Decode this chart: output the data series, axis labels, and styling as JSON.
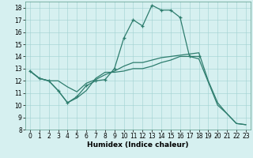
{
  "xlabel": "Humidex (Indice chaleur)",
  "bg_color": "#d6f0f0",
  "line_color": "#2e7d6e",
  "xlim": [
    -0.5,
    23.5
  ],
  "ylim": [
    8,
    18.5
  ],
  "yticks": [
    8,
    9,
    10,
    11,
    12,
    13,
    14,
    15,
    16,
    17,
    18
  ],
  "xticks": [
    0,
    1,
    2,
    3,
    4,
    5,
    6,
    7,
    8,
    9,
    10,
    11,
    12,
    13,
    14,
    15,
    16,
    17,
    18,
    19,
    20,
    21,
    22,
    23
  ],
  "line1_x": [
    0,
    1,
    2,
    3,
    4,
    5,
    6,
    7,
    8,
    9,
    10,
    11,
    12,
    13,
    14,
    15,
    16,
    17,
    18
  ],
  "line1_y": [
    12.8,
    12.2,
    12.0,
    11.2,
    10.2,
    10.7,
    11.6,
    12.0,
    12.1,
    13.0,
    15.5,
    17.0,
    16.5,
    18.2,
    17.8,
    17.8,
    17.2,
    14.0,
    14.0
  ],
  "line2_x": [
    0,
    1,
    2,
    3,
    4,
    5,
    6,
    7,
    8,
    9,
    10,
    11,
    12,
    13,
    14,
    15,
    16,
    17,
    18,
    19,
    20,
    21,
    22,
    23
  ],
  "line2_y": [
    12.8,
    12.2,
    12.0,
    12.0,
    11.5,
    11.1,
    11.8,
    12.1,
    12.5,
    12.8,
    13.2,
    13.5,
    13.5,
    13.7,
    13.9,
    14.0,
    14.1,
    14.2,
    14.3,
    12.0,
    10.2,
    9.3,
    8.5,
    8.4
  ],
  "line3_x": [
    0,
    1,
    2,
    3,
    4,
    5,
    6,
    7,
    8,
    9,
    10,
    11,
    12,
    13,
    14,
    15,
    16,
    17,
    18,
    19,
    20,
    21,
    22,
    23
  ],
  "line3_y": [
    12.8,
    12.2,
    12.0,
    11.2,
    10.2,
    10.6,
    11.2,
    12.2,
    12.7,
    12.7,
    12.8,
    13.0,
    13.0,
    13.2,
    13.5,
    13.7,
    14.0,
    14.0,
    13.8,
    11.9,
    10.0,
    9.3,
    8.5,
    8.4
  ],
  "tick_fontsize": 5.5,
  "xlabel_fontsize": 6.5,
  "linewidth": 0.9,
  "marker": "+",
  "markersize": 3.5
}
